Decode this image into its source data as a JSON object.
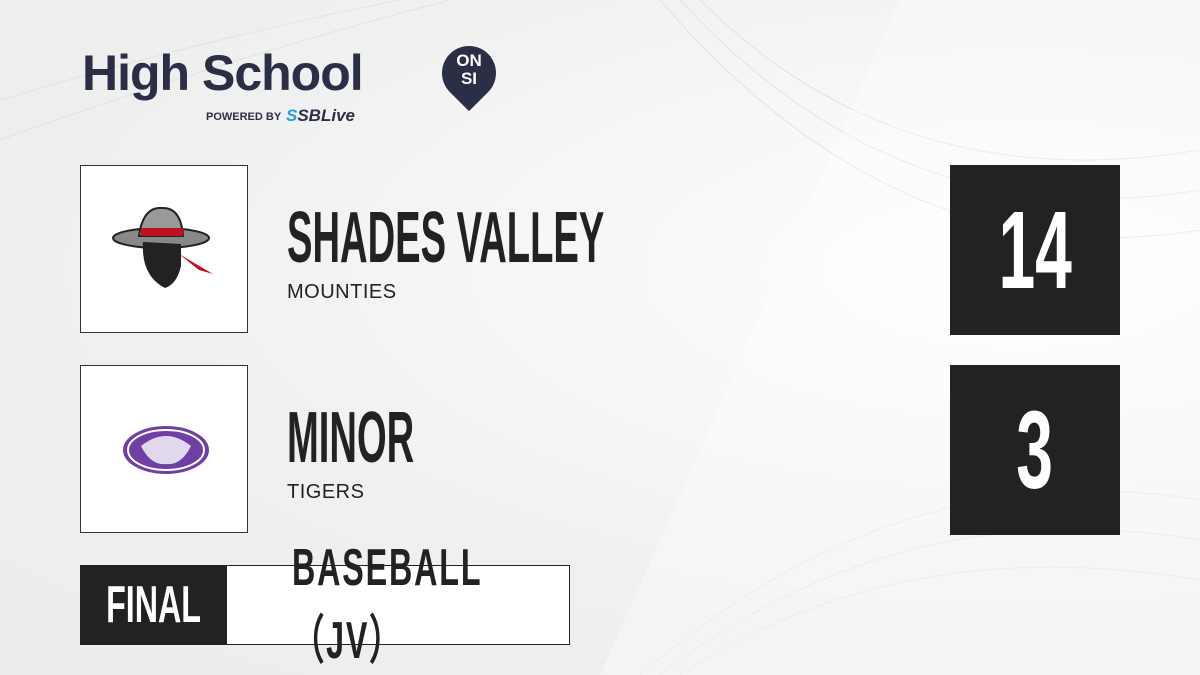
{
  "brand": {
    "title": "High School",
    "badge_top": "ON",
    "badge_bottom": "SI",
    "powered_by": "POWERED BY",
    "partner_prefix": "S",
    "partner": "SBLive"
  },
  "teams": [
    {
      "name": "SHADES VALLEY",
      "mascot": "MOUNTIES",
      "score": "14",
      "logo_colors": [
        "#c0111f",
        "#888888",
        "#222222"
      ]
    },
    {
      "name": "MINOR",
      "mascot": "TIGERS",
      "score": "3",
      "logo_colors": [
        "#6f3fa5",
        "#ffffff"
      ]
    }
  ],
  "status": "FINAL",
  "sport": "BASEBALL（JV）",
  "colors": {
    "navy": "#2b2f45",
    "dark": "#222222",
    "accent": "#1aa3e8"
  }
}
